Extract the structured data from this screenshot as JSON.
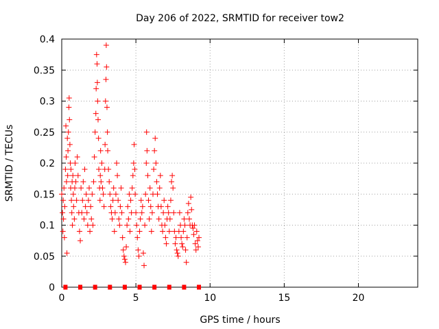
{
  "chart_data": {
    "type": "scatter",
    "title": "Day 206 of 2022, SRMTID for receiver tow2",
    "xlabel": "GPS time / hours",
    "ylabel": "SRMTID / TECUs",
    "xlim": [
      0,
      24
    ],
    "ylim": [
      0,
      0.4
    ],
    "grid": true,
    "x_ticks": [
      0,
      5,
      10,
      15,
      20
    ],
    "x_tick_labels": [
      "0",
      "5",
      "10",
      "15",
      "20"
    ],
    "y_ticks": [
      0,
      0.05,
      0.1,
      0.15,
      0.2,
      0.25,
      0.3,
      0.35,
      0.4
    ],
    "y_tick_labels": [
      "0",
      "0.05",
      "0.1",
      "0.15",
      "0.2",
      "0.25",
      "0.3",
      "0.35",
      "0.4"
    ],
    "marker": "plus",
    "series": [
      {
        "name": "SRMTID",
        "color": "#ff0000",
        "points": [
          [
            0.0,
            0.15
          ],
          [
            0.05,
            0.12
          ],
          [
            0.08,
            0.09
          ],
          [
            0.1,
            0.14
          ],
          [
            0.12,
            0.11
          ],
          [
            0.15,
            0.16
          ],
          [
            0.18,
            0.08
          ],
          [
            0.2,
            0.13
          ],
          [
            0.25,
            0.19
          ],
          [
            0.28,
            0.26
          ],
          [
            0.3,
            0.21
          ],
          [
            0.32,
            0.17
          ],
          [
            0.35,
            0.055
          ],
          [
            0.38,
            0.24
          ],
          [
            0.4,
            0.18
          ],
          [
            0.42,
            0.22
          ],
          [
            0.45,
            0.25
          ],
          [
            0.48,
            0.29
          ],
          [
            0.5,
            0.305
          ],
          [
            0.52,
            0.27
          ],
          [
            0.55,
            0.23
          ],
          [
            0.58,
            0.2
          ],
          [
            0.6,
            0.16
          ],
          [
            0.62,
            0.19
          ],
          [
            0.65,
            0.14
          ],
          [
            0.68,
            0.12
          ],
          [
            0.7,
            0.17
          ],
          [
            0.72,
            0.1
          ],
          [
            0.75,
            0.18
          ],
          [
            0.78,
            0.15
          ],
          [
            0.8,
            0.13
          ],
          [
            0.85,
            0.11
          ],
          [
            0.88,
            0.16
          ],
          [
            0.9,
            0.2
          ],
          [
            0.95,
            0.17
          ],
          [
            1.0,
            0.14
          ],
          [
            1.05,
            0.21
          ],
          [
            1.1,
            0.18
          ],
          [
            1.15,
            0.12
          ],
          [
            1.2,
            0.09
          ],
          [
            1.25,
            0.075
          ],
          [
            1.3,
            0.16
          ],
          [
            1.35,
            0.12
          ],
          [
            1.4,
            0.14
          ],
          [
            1.45,
            0.17
          ],
          [
            1.5,
            0.11
          ],
          [
            1.55,
            0.19
          ],
          [
            1.6,
            0.13
          ],
          [
            1.65,
            0.15
          ],
          [
            1.7,
            0.12
          ],
          [
            1.75,
            0.1
          ],
          [
            1.8,
            0.14
          ],
          [
            1.85,
            0.16
          ],
          [
            1.9,
            0.09
          ],
          [
            1.95,
            0.13
          ],
          [
            2.0,
            0.11
          ],
          [
            2.05,
            0.15
          ],
          [
            2.1,
            0.1
          ],
          [
            2.15,
            0.17
          ],
          [
            2.2,
            0.21
          ],
          [
            2.25,
            0.25
          ],
          [
            2.3,
            0.28
          ],
          [
            2.32,
            0.32
          ],
          [
            2.35,
            0.375
          ],
          [
            2.38,
            0.36
          ],
          [
            2.4,
            0.33
          ],
          [
            2.42,
            0.3
          ],
          [
            2.45,
            0.27
          ],
          [
            2.48,
            0.24
          ],
          [
            2.5,
            0.19
          ],
          [
            2.55,
            0.16
          ],
          [
            2.58,
            0.14
          ],
          [
            2.6,
            0.18
          ],
          [
            2.62,
            0.22
          ],
          [
            2.65,
            0.17
          ],
          [
            2.7,
            0.2
          ],
          [
            2.75,
            0.16
          ],
          [
            2.8,
            0.15
          ],
          [
            2.85,
            0.13
          ],
          [
            2.9,
            0.19
          ],
          [
            2.92,
            0.23
          ],
          [
            2.95,
            0.3
          ],
          [
            2.98,
            0.335
          ],
          [
            3.0,
            0.39
          ],
          [
            3.02,
            0.355
          ],
          [
            3.05,
            0.29
          ],
          [
            3.08,
            0.25
          ],
          [
            3.1,
            0.22
          ],
          [
            3.15,
            0.19
          ],
          [
            3.2,
            0.17
          ],
          [
            3.25,
            0.15
          ],
          [
            3.3,
            0.13
          ],
          [
            3.35,
            0.12
          ],
          [
            3.4,
            0.11
          ],
          [
            3.45,
            0.14
          ],
          [
            3.5,
            0.16
          ],
          [
            3.55,
            0.09
          ],
          [
            3.6,
            0.12
          ],
          [
            3.65,
            0.15
          ],
          [
            3.7,
            0.2
          ],
          [
            3.75,
            0.18
          ],
          [
            3.8,
            0.14
          ],
          [
            3.85,
            0.11
          ],
          [
            3.9,
            0.1
          ],
          [
            3.95,
            0.13
          ],
          [
            4.0,
            0.16
          ],
          [
            4.05,
            0.12
          ],
          [
            4.1,
            0.08
          ],
          [
            4.15,
            0.06
          ],
          [
            4.2,
            0.05
          ],
          [
            4.25,
            0.045
          ],
          [
            4.3,
            0.04
          ],
          [
            4.35,
            0.065
          ],
          [
            4.4,
            0.1
          ],
          [
            4.45,
            0.13
          ],
          [
            4.5,
            0.11
          ],
          [
            4.55,
            0.15
          ],
          [
            4.6,
            0.09
          ],
          [
            4.65,
            0.14
          ],
          [
            4.7,
            0.12
          ],
          [
            4.75,
            0.16
          ],
          [
            4.8,
            0.18
          ],
          [
            4.85,
            0.2
          ],
          [
            4.88,
            0.23
          ],
          [
            4.92,
            0.19
          ],
          [
            4.95,
            0.15
          ],
          [
            5.0,
            0.12
          ],
          [
            5.05,
            0.1
          ],
          [
            5.1,
            0.08
          ],
          [
            5.15,
            0.06
          ],
          [
            5.2,
            0.05
          ],
          [
            5.25,
            0.09
          ],
          [
            5.3,
            0.11
          ],
          [
            5.35,
            0.14
          ],
          [
            5.4,
            0.12
          ],
          [
            5.45,
            0.13
          ],
          [
            5.5,
            0.055
          ],
          [
            5.55,
            0.035
          ],
          [
            5.6,
            0.1
          ],
          [
            5.65,
            0.15
          ],
          [
            5.7,
            0.2
          ],
          [
            5.72,
            0.25
          ],
          [
            5.75,
            0.22
          ],
          [
            5.8,
            0.18
          ],
          [
            5.85,
            0.14
          ],
          [
            5.9,
            0.11
          ],
          [
            5.95,
            0.16
          ],
          [
            6.0,
            0.13
          ],
          [
            6.05,
            0.09
          ],
          [
            6.1,
            0.12
          ],
          [
            6.15,
            0.15
          ],
          [
            6.2,
            0.19
          ],
          [
            6.25,
            0.22
          ],
          [
            6.3,
            0.24
          ],
          [
            6.35,
            0.2
          ],
          [
            6.4,
            0.17
          ],
          [
            6.45,
            0.15
          ],
          [
            6.5,
            0.13
          ],
          [
            6.55,
            0.11
          ],
          [
            6.6,
            0.16
          ],
          [
            6.65,
            0.18
          ],
          [
            6.7,
            0.13
          ],
          [
            6.75,
            0.1
          ],
          [
            6.8,
            0.09
          ],
          [
            6.85,
            0.12
          ],
          [
            6.9,
            0.14
          ],
          [
            6.95,
            0.1
          ],
          [
            7.0,
            0.08
          ],
          [
            7.05,
            0.07
          ],
          [
            7.1,
            0.11
          ],
          [
            7.15,
            0.13
          ],
          [
            7.2,
            0.12
          ],
          [
            7.25,
            0.09
          ],
          [
            7.3,
            0.11
          ],
          [
            7.35,
            0.14
          ],
          [
            7.4,
            0.17
          ],
          [
            7.45,
            0.18
          ],
          [
            7.5,
            0.16
          ],
          [
            7.55,
            0.12
          ],
          [
            7.6,
            0.09
          ],
          [
            7.65,
            0.07
          ],
          [
            7.7,
            0.08
          ],
          [
            7.75,
            0.06
          ],
          [
            7.8,
            0.055
          ],
          [
            7.85,
            0.05
          ],
          [
            7.9,
            0.09
          ],
          [
            7.95,
            0.12
          ],
          [
            8.0,
            0.1
          ],
          [
            8.05,
            0.08
          ],
          [
            8.1,
            0.07
          ],
          [
            8.15,
            0.065
          ],
          [
            8.2,
            0.09
          ],
          [
            8.25,
            0.11
          ],
          [
            8.3,
            0.1
          ],
          [
            8.35,
            0.06
          ],
          [
            8.4,
            0.04
          ],
          [
            8.45,
            0.08
          ],
          [
            8.5,
            0.12
          ],
          [
            8.55,
            0.135
          ],
          [
            8.6,
            0.11
          ],
          [
            8.65,
            0.1
          ],
          [
            8.7,
            0.145
          ],
          [
            8.75,
            0.125
          ],
          [
            8.8,
            0.1
          ],
          [
            8.85,
            0.095
          ],
          [
            8.9,
            0.085
          ],
          [
            8.95,
            0.1
          ],
          [
            9.0,
            0.07
          ],
          [
            9.05,
            0.06
          ],
          [
            9.1,
            0.09
          ],
          [
            9.15,
            0.075
          ],
          [
            9.2,
            0.065
          ],
          [
            9.25,
            0.08
          ]
        ]
      },
      {
        "name": "zero-baseline",
        "color": "#ff0000",
        "points": [
          [
            0.25,
            0
          ],
          [
            1.25,
            0
          ],
          [
            2.25,
            0
          ],
          [
            3.25,
            0
          ],
          [
            4.25,
            0
          ],
          [
            5.25,
            0
          ],
          [
            6.25,
            0
          ],
          [
            7.25,
            0
          ],
          [
            8.25,
            0
          ],
          [
            9.25,
            0
          ]
        ]
      }
    ]
  }
}
